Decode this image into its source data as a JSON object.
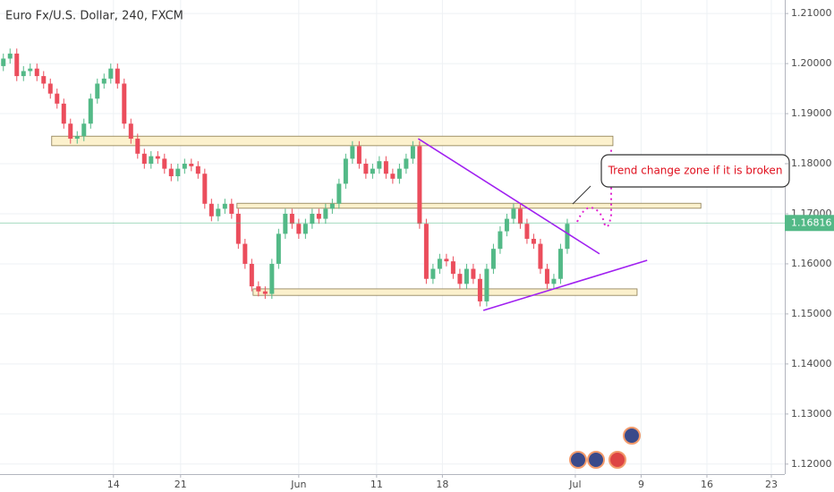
{
  "chart_data": {
    "type": "candlestick",
    "title": "Euro Fx/U.S. Dollar, 240, FXCM",
    "up_color": "#53b987",
    "down_color": "#eb4d5c",
    "xlim": [
      -0.5,
      116.4
    ],
    "ylim": [
      1.118,
      1.2127
    ],
    "grid": true,
    "xticks": [
      {
        "value": 16.4,
        "label": "14"
      },
      {
        "value": 26.4,
        "label": "21"
      },
      {
        "value": 44.0,
        "label": "Jun"
      },
      {
        "value": 55.6,
        "label": "11"
      },
      {
        "value": 65.4,
        "label": "18"
      },
      {
        "value": 85.2,
        "label": "Jul"
      },
      {
        "value": 95.0,
        "label": "9"
      },
      {
        "value": 104.8,
        "label": "16"
      },
      {
        "value": 114.4,
        "label": "23"
      }
    ],
    "yticks": [
      {
        "value": 1.12,
        "label": "1.12000"
      },
      {
        "value": 1.13,
        "label": "1.13000"
      },
      {
        "value": 1.14,
        "label": "1.14000"
      },
      {
        "value": 1.15,
        "label": "1.15000"
      },
      {
        "value": 1.16,
        "label": "1.16000"
      },
      {
        "value": 1.17,
        "label": "1.17000"
      },
      {
        "value": 1.18,
        "label": "1.18000"
      },
      {
        "value": 1.19,
        "label": "1.19000"
      },
      {
        "value": 1.2,
        "label": "1.20000"
      },
      {
        "value": 1.21,
        "label": "1.21000"
      }
    ],
    "last_price": 1.16816,
    "candles": [
      [
        1.1995,
        1.202,
        1.1985,
        1.201
      ],
      [
        1.201,
        1.203,
        1.2,
        1.202
      ],
      [
        1.202,
        1.203,
        1.1965,
        1.1975
      ],
      [
        1.1975,
        1.1995,
        1.1965,
        1.1985
      ],
      [
        1.1985,
        1.2,
        1.1975,
        1.199
      ],
      [
        1.199,
        1.2,
        1.1965,
        1.1975
      ],
      [
        1.1975,
        1.1985,
        1.195,
        1.196
      ],
      [
        1.196,
        1.197,
        1.193,
        1.194
      ],
      [
        1.194,
        1.195,
        1.191,
        1.192
      ],
      [
        1.192,
        1.193,
        1.187,
        1.188
      ],
      [
        1.188,
        1.189,
        1.184,
        1.185
      ],
      [
        1.185,
        1.1865,
        1.184,
        1.1855
      ],
      [
        1.1855,
        1.189,
        1.1845,
        1.188
      ],
      [
        1.188,
        1.194,
        1.187,
        1.193
      ],
      [
        1.193,
        1.197,
        1.192,
        1.196
      ],
      [
        1.196,
        1.198,
        1.195,
        1.197
      ],
      [
        1.197,
        1.2,
        1.196,
        1.199
      ],
      [
        1.199,
        1.2,
        1.195,
        1.196
      ],
      [
        1.196,
        1.197,
        1.187,
        1.188
      ],
      [
        1.188,
        1.189,
        1.184,
        1.185
      ],
      [
        1.185,
        1.186,
        1.181,
        1.182
      ],
      [
        1.182,
        1.183,
        1.179,
        1.18
      ],
      [
        1.18,
        1.1825,
        1.179,
        1.1815
      ],
      [
        1.1815,
        1.1825,
        1.18,
        1.181
      ],
      [
        1.181,
        1.182,
        1.178,
        1.179
      ],
      [
        1.179,
        1.18,
        1.1765,
        1.1775
      ],
      [
        1.1775,
        1.18,
        1.1765,
        1.179
      ],
      [
        1.179,
        1.181,
        1.178,
        1.18
      ],
      [
        1.18,
        1.181,
        1.1785,
        1.1795
      ],
      [
        1.1795,
        1.1805,
        1.177,
        1.178
      ],
      [
        1.178,
        1.179,
        1.171,
        1.172
      ],
      [
        1.172,
        1.173,
        1.1685,
        1.1695
      ],
      [
        1.1695,
        1.172,
        1.1685,
        1.171
      ],
      [
        1.171,
        1.173,
        1.17,
        1.172
      ],
      [
        1.172,
        1.173,
        1.169,
        1.17
      ],
      [
        1.17,
        1.171,
        1.163,
        1.164
      ],
      [
        1.164,
        1.165,
        1.159,
        1.16
      ],
      [
        1.16,
        1.161,
        1.1545,
        1.1555
      ],
      [
        1.1555,
        1.1565,
        1.1535,
        1.1545
      ],
      [
        1.1545,
        1.1555,
        1.153,
        1.154
      ],
      [
        1.154,
        1.161,
        1.153,
        1.16
      ],
      [
        1.16,
        1.167,
        1.159,
        1.166
      ],
      [
        1.166,
        1.171,
        1.165,
        1.17
      ],
      [
        1.17,
        1.171,
        1.167,
        1.168
      ],
      [
        1.168,
        1.169,
        1.165,
        1.166
      ],
      [
        1.166,
        1.169,
        1.165,
        1.168
      ],
      [
        1.168,
        1.171,
        1.167,
        1.17
      ],
      [
        1.17,
        1.171,
        1.168,
        1.169
      ],
      [
        1.169,
        1.172,
        1.168,
        1.171
      ],
      [
        1.171,
        1.173,
        1.17,
        1.172
      ],
      [
        1.172,
        1.177,
        1.171,
        1.176
      ],
      [
        1.176,
        1.182,
        1.175,
        1.181
      ],
      [
        1.181,
        1.1845,
        1.18,
        1.1835
      ],
      [
        1.1835,
        1.1845,
        1.179,
        1.18
      ],
      [
        1.18,
        1.181,
        1.177,
        1.178
      ],
      [
        1.178,
        1.18,
        1.177,
        1.179
      ],
      [
        1.179,
        1.1815,
        1.178,
        1.1805
      ],
      [
        1.1805,
        1.1815,
        1.177,
        1.178
      ],
      [
        1.178,
        1.179,
        1.176,
        1.177
      ],
      [
        1.177,
        1.18,
        1.176,
        1.179
      ],
      [
        1.179,
        1.182,
        1.178,
        1.181
      ],
      [
        1.181,
        1.1845,
        1.18,
        1.1835
      ],
      [
        1.1835,
        1.1845,
        1.167,
        1.168
      ],
      [
        1.168,
        1.169,
        1.156,
        1.157
      ],
      [
        1.157,
        1.16,
        1.156,
        1.159
      ],
      [
        1.159,
        1.162,
        1.158,
        1.161
      ],
      [
        1.161,
        1.162,
        1.1595,
        1.1605
      ],
      [
        1.1605,
        1.1615,
        1.157,
        1.158
      ],
      [
        1.158,
        1.159,
        1.155,
        1.156
      ],
      [
        1.156,
        1.16,
        1.155,
        1.159
      ],
      [
        1.159,
        1.16,
        1.156,
        1.157
      ],
      [
        1.157,
        1.158,
        1.1515,
        1.1525
      ],
      [
        1.1525,
        1.16,
        1.1515,
        1.159
      ],
      [
        1.159,
        1.164,
        1.158,
        1.163
      ],
      [
        1.163,
        1.1675,
        1.162,
        1.1665
      ],
      [
        1.1665,
        1.17,
        1.1655,
        1.169
      ],
      [
        1.169,
        1.172,
        1.168,
        1.171
      ],
      [
        1.171,
        1.172,
        1.167,
        1.168
      ],
      [
        1.168,
        1.169,
        1.164,
        1.165
      ],
      [
        1.165,
        1.166,
        1.163,
        1.164
      ],
      [
        1.164,
        1.165,
        1.158,
        1.159
      ],
      [
        1.159,
        1.16,
        1.155,
        1.156
      ],
      [
        1.156,
        1.158,
        1.155,
        1.157
      ],
      [
        1.157,
        1.164,
        1.156,
        1.163
      ],
      [
        1.163,
        1.169,
        1.162,
        1.168
      ]
    ],
    "zones": [
      {
        "x": [
          7.2,
          90.8
        ],
        "price": [
          1.1836,
          1.1855
        ]
      },
      {
        "x": [
          34.8,
          103.9
        ],
        "price": [
          1.1711,
          1.1721
        ]
      },
      {
        "x": [
          37.2,
          94.4
        ],
        "price": [
          1.1537,
          1.155
        ]
      }
    ],
    "zone_color": "#fbeec4",
    "trendlines": [
      {
        "x": [
          61.8,
          88.8
        ],
        "price": [
          1.185,
          1.162
        ]
      },
      {
        "x": [
          71.5,
          95.9
        ],
        "price": [
          1.1507,
          1.1607
        ]
      }
    ],
    "trendline_color": "#a020f0",
    "annotation": "Trend change zone if it is broken"
  }
}
